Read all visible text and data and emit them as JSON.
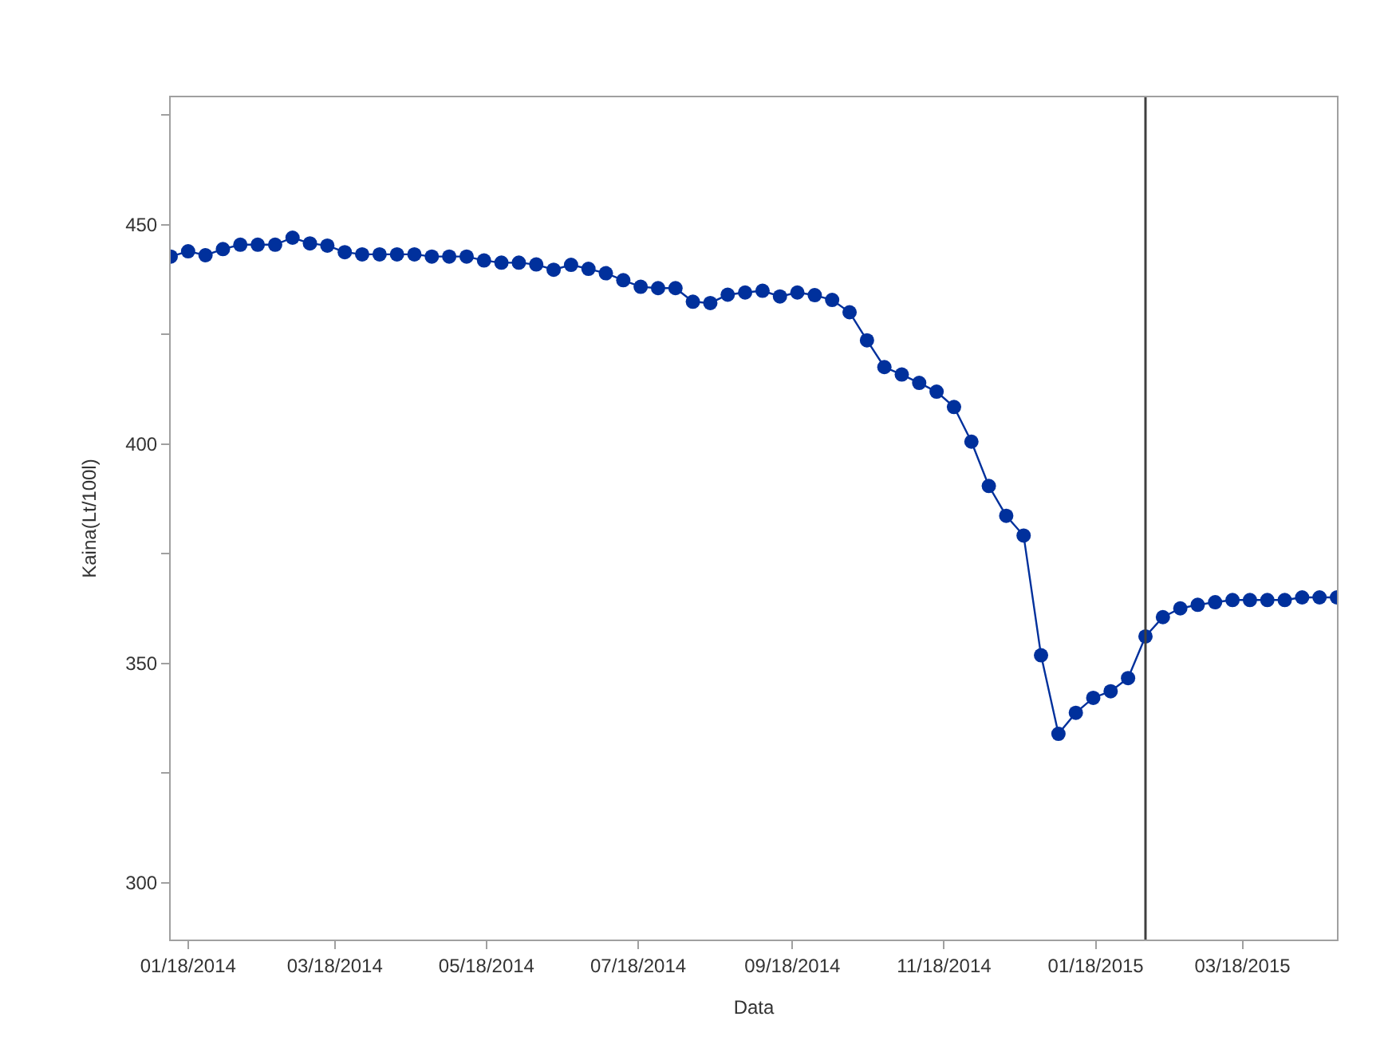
{
  "chart_data": {
    "type": "line",
    "xlabel": "Data",
    "ylabel": "Kaina(Lt/100l)",
    "x": [
      "2014-01-11",
      "2014-01-18",
      "2014-01-25",
      "2014-02-01",
      "2014-02-08",
      "2014-02-15",
      "2014-02-22",
      "2014-03-01",
      "2014-03-08",
      "2014-03-15",
      "2014-03-22",
      "2014-03-29",
      "2014-04-05",
      "2014-04-12",
      "2014-04-19",
      "2014-04-26",
      "2014-05-03",
      "2014-05-10",
      "2014-05-17",
      "2014-05-24",
      "2014-05-31",
      "2014-06-07",
      "2014-06-14",
      "2014-06-21",
      "2014-06-28",
      "2014-07-05",
      "2014-07-12",
      "2014-07-19",
      "2014-07-26",
      "2014-08-02",
      "2014-08-09",
      "2014-08-16",
      "2014-08-23",
      "2014-08-30",
      "2014-09-06",
      "2014-09-13",
      "2014-09-20",
      "2014-09-27",
      "2014-10-04",
      "2014-10-11",
      "2014-10-18",
      "2014-10-25",
      "2014-11-01",
      "2014-11-08",
      "2014-11-15",
      "2014-11-22",
      "2014-11-29",
      "2014-12-06",
      "2014-12-13",
      "2014-12-20",
      "2014-12-27",
      "2015-01-03",
      "2015-01-10",
      "2015-01-17",
      "2015-01-24",
      "2015-01-31",
      "2015-02-07",
      "2015-02-14",
      "2015-02-21",
      "2015-02-28",
      "2015-03-07",
      "2015-03-14",
      "2015-03-21",
      "2015-03-28",
      "2015-04-04",
      "2015-04-11",
      "2015-04-18",
      "2015-04-25"
    ],
    "series": [
      {
        "color": "#00309c",
        "values": [
          442.7,
          443.9,
          443.0,
          444.4,
          445.4,
          445.4,
          445.4,
          447.0,
          445.7,
          445.2,
          443.7,
          443.2,
          443.2,
          443.2,
          443.2,
          442.7,
          442.7,
          442.7,
          441.8,
          441.3,
          441.3,
          440.9,
          439.7,
          440.8,
          439.9,
          438.9,
          437.3,
          435.8,
          435.5,
          435.5,
          432.4,
          432.1,
          434.0,
          434.5,
          434.9,
          433.6,
          434.5,
          433.9,
          432.8,
          430.0,
          423.6,
          417.5,
          415.8,
          413.9,
          411.9,
          408.4,
          400.5,
          390.4,
          383.6,
          379.1,
          351.8,
          333.9,
          338.7,
          342.1,
          343.6,
          346.6,
          356.1,
          360.5,
          362.5,
          363.3,
          363.9,
          364.4,
          364.4,
          364.4,
          364.4,
          365.0,
          365.0,
          365.0
        ]
      }
    ],
    "marker": "circle",
    "line_style": "solid",
    "xlim": [
      "2014-01-11",
      "2015-04-25"
    ],
    "xticks": [
      {
        "value": "2014-01-18",
        "label": "01/18/2014"
      },
      {
        "value": "2014-03-18",
        "label": "03/18/2014"
      },
      {
        "value": "2014-05-18",
        "label": "05/18/2014"
      },
      {
        "value": "2014-07-18",
        "label": "07/18/2014"
      },
      {
        "value": "2014-09-18",
        "label": "09/18/2014"
      },
      {
        "value": "2014-11-18",
        "label": "11/18/2014"
      },
      {
        "value": "2015-01-18",
        "label": "01/18/2015"
      },
      {
        "value": "2015-03-18",
        "label": "03/18/2015"
      }
    ],
    "ylim": [
      287,
      479
    ],
    "yticks": [
      300,
      {
        "value": 325,
        "label": null
      },
      350,
      {
        "value": 375,
        "label": null
      },
      400,
      {
        "value": 425,
        "label": null
      },
      450,
      {
        "value": 475,
        "label": null
      }
    ],
    "ref_lines": [
      {
        "axis": "x",
        "value": "2015-02-07",
        "color": "#404040",
        "line_style": "solid"
      }
    ]
  }
}
